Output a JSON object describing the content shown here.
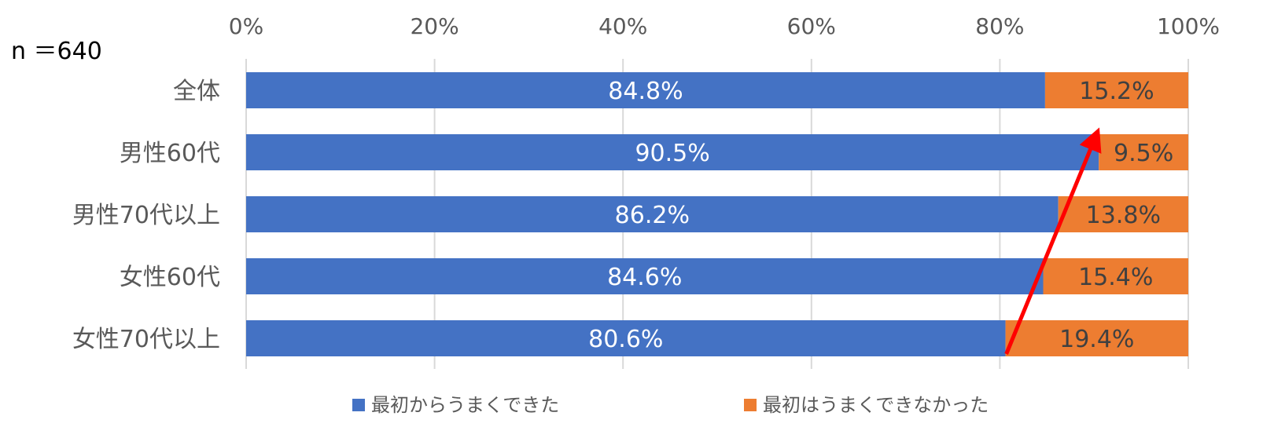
{
  "chart_data": {
    "type": "bar",
    "orientation": "horizontal",
    "stacked": true,
    "note": "n ＝640",
    "categories": [
      "全体",
      "男性60代",
      "男性70代以上",
      "女性60代",
      "女性70代以上"
    ],
    "series": [
      {
        "name": "最初からうまくできた",
        "values": [
          84.8,
          90.5,
          86.2,
          84.6,
          80.6
        ],
        "labels": [
          "84.8%",
          "90.5%",
          "86.2%",
          "84.6%",
          "80.6%"
        ]
      },
      {
        "name": "最初はうまくできなかった",
        "values": [
          15.2,
          9.5,
          13.8,
          15.4,
          19.4
        ],
        "labels": [
          "15.2%",
          "9.5%",
          "13.8%",
          "15.4%",
          "19.4%"
        ]
      }
    ],
    "x_ticks": [
      "0%",
      "20%",
      "40%",
      "60%",
      "80%",
      "100%"
    ],
    "xlim": [
      0,
      100
    ],
    "x_axis_position": "top",
    "grid": true,
    "legend": "bottom",
    "colors": {
      "series1": "#4472C4",
      "series2": "#ED7D31",
      "arrow": "#FF0000",
      "label1": "#ffffff",
      "label2": "#404040"
    },
    "annotation": {
      "type": "arrow",
      "from_category": "女性70代以上",
      "to_category": "男性60代"
    }
  }
}
